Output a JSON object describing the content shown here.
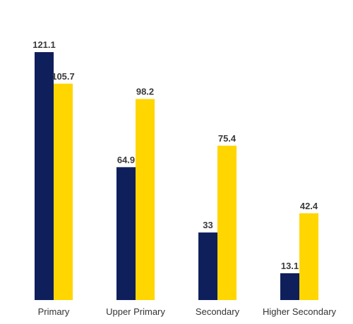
{
  "chart_data": {
    "type": "bar",
    "categories": [
      "Primary",
      "Upper Primary",
      "Secondary",
      "Higher Secondary"
    ],
    "series": [
      {
        "values": [
          121.1,
          64.9,
          33,
          13.1
        ],
        "color": "#0f1f5c"
      },
      {
        "values": [
          105.7,
          98.2,
          75.4,
          42.4
        ],
        "color": "#ffd600"
      }
    ],
    "data_labels": [
      [
        "121.1",
        "64.9",
        "33",
        "13.1"
      ],
      [
        "105.7",
        "98.2",
        "75.4",
        "42.4"
      ]
    ],
    "title": "",
    "xlabel": "",
    "ylabel": "",
    "ylim": [
      0,
      121.1
    ],
    "grid": false,
    "legend": "none"
  }
}
